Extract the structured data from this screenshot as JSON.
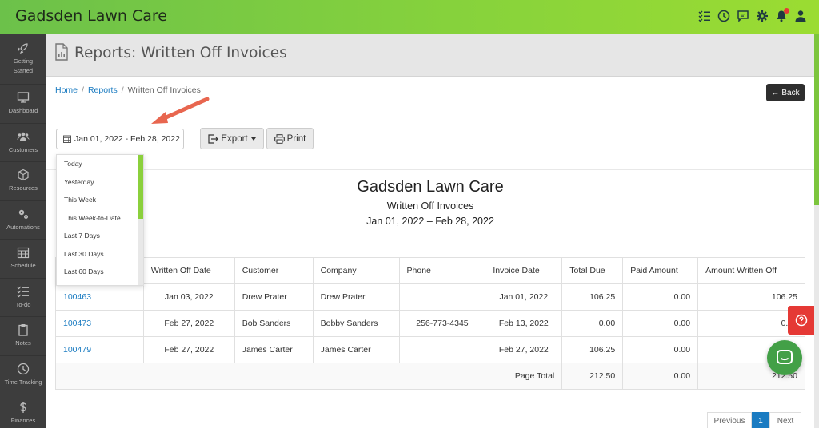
{
  "app": {
    "title": "Gadsden Lawn Care"
  },
  "topbar": {
    "icons": [
      "checklist-icon",
      "clock-icon",
      "chat-icon",
      "gear-icon",
      "bell-icon",
      "user-icon"
    ]
  },
  "sidebar": {
    "items": [
      {
        "label": "Getting Started",
        "icon": "rocket-icon"
      },
      {
        "label": "Dashboard",
        "icon": "monitor-icon"
      },
      {
        "label": "Customers",
        "icon": "users-icon"
      },
      {
        "label": "Resources",
        "icon": "box-icon"
      },
      {
        "label": "Automations",
        "icon": "gears-icon"
      },
      {
        "label": "Schedule",
        "icon": "calendar-icon"
      },
      {
        "label": "To-do",
        "icon": "todo-icon"
      },
      {
        "label": "Notes",
        "icon": "clipboard-icon"
      },
      {
        "label": "Time Tracking",
        "icon": "clock-icon"
      },
      {
        "label": "Finances",
        "icon": "dollar-icon"
      }
    ]
  },
  "page": {
    "title": "Reports: Written Off Invoices"
  },
  "breadcrumb": {
    "home": "Home",
    "reports": "Reports",
    "current": "Written Off Invoices"
  },
  "toolbar": {
    "back_label": "Back",
    "date_range": "Jan 01, 2022 - Feb 28, 2022",
    "export_label": "Export",
    "print_label": "Print"
  },
  "date_dropdown": {
    "options": [
      "Today",
      "Yesterday",
      "This Week",
      "This Week-to-Date",
      "Last 7 Days",
      "Last 30 Days",
      "Last 60 Days"
    ]
  },
  "report": {
    "company": "Gadsden Lawn Care",
    "name": "Written Off Invoices",
    "range": "Jan 01, 2022 – Feb 28, 2022"
  },
  "table": {
    "headers": [
      "",
      "Written Off Date",
      "Customer",
      "Company",
      "Phone",
      "Invoice Date",
      "Total Due",
      "Paid Amount",
      "Amount Written Off"
    ],
    "rows": [
      {
        "invoice": "100463",
        "written_off_date": "Jan 03, 2022",
        "customer": "Drew Prater",
        "company": "Drew Prater",
        "phone": "",
        "invoice_date": "Jan 01, 2022",
        "total_due": "106.25",
        "paid": "0.00",
        "written_off": "106.25"
      },
      {
        "invoice": "100473",
        "written_off_date": "Feb 27, 2022",
        "customer": "Bob Sanders",
        "company": "Bobby Sanders",
        "phone": "256-773-4345",
        "invoice_date": "Feb 13, 2022",
        "total_due": "0.00",
        "paid": "0.00",
        "written_off": "0.00"
      },
      {
        "invoice": "100479",
        "written_off_date": "Feb 27, 2022",
        "customer": "James Carter",
        "company": "James Carter",
        "phone": "",
        "invoice_date": "Feb 27, 2022",
        "total_due": "106.25",
        "paid": "0.00",
        "written_off": "106.25"
      }
    ],
    "total": {
      "label": "Page Total",
      "total_due": "212.50",
      "paid": "0.00",
      "written_off": "212.50"
    }
  },
  "pagination": {
    "previous": "Previous",
    "current": "1",
    "next": "Next"
  },
  "colors": {
    "brand_green": "#7cc53d",
    "link_blue": "#1a7bc1",
    "help_red": "#e53935",
    "chat_green": "#43a047",
    "arrow": "#e8664f"
  }
}
